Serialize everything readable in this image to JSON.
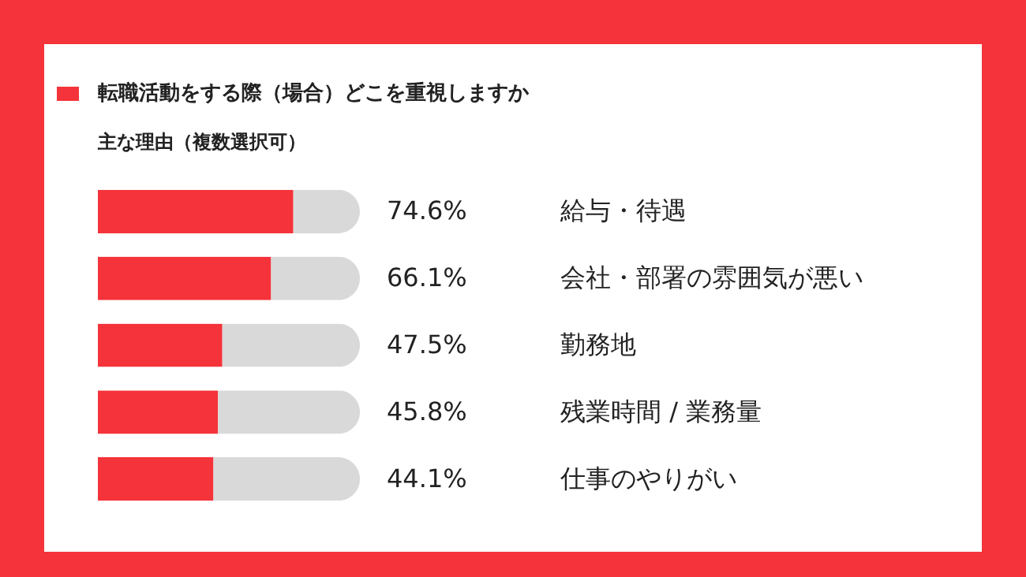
{
  "chart_data": {
    "type": "bar",
    "orientation": "horizontal",
    "stacked": true,
    "title": "転職活動をする際（場合）どこを重視しますか",
    "subtitle": "主な理由（複数選択可）",
    "categories": [
      "給与・待遇",
      "会社・部署の雰囲気が悪い",
      "勤務地",
      "残業時間 / 業務量",
      "仕事のやりがい"
    ],
    "xlim": [
      0,
      100
    ],
    "series": [
      {
        "color": "#f5333a",
        "values": [
          74.6,
          66.1,
          47.5,
          45.8,
          44.1
        ],
        "value_labels": [
          "74.6%",
          "66.1%",
          "47.5%",
          "45.8%",
          "44.1%"
        ]
      },
      {
        "color": "#d9d9d9",
        "values": [
          25.4,
          33.9,
          52.5,
          54.2,
          55.9
        ]
      }
    ]
  }
}
